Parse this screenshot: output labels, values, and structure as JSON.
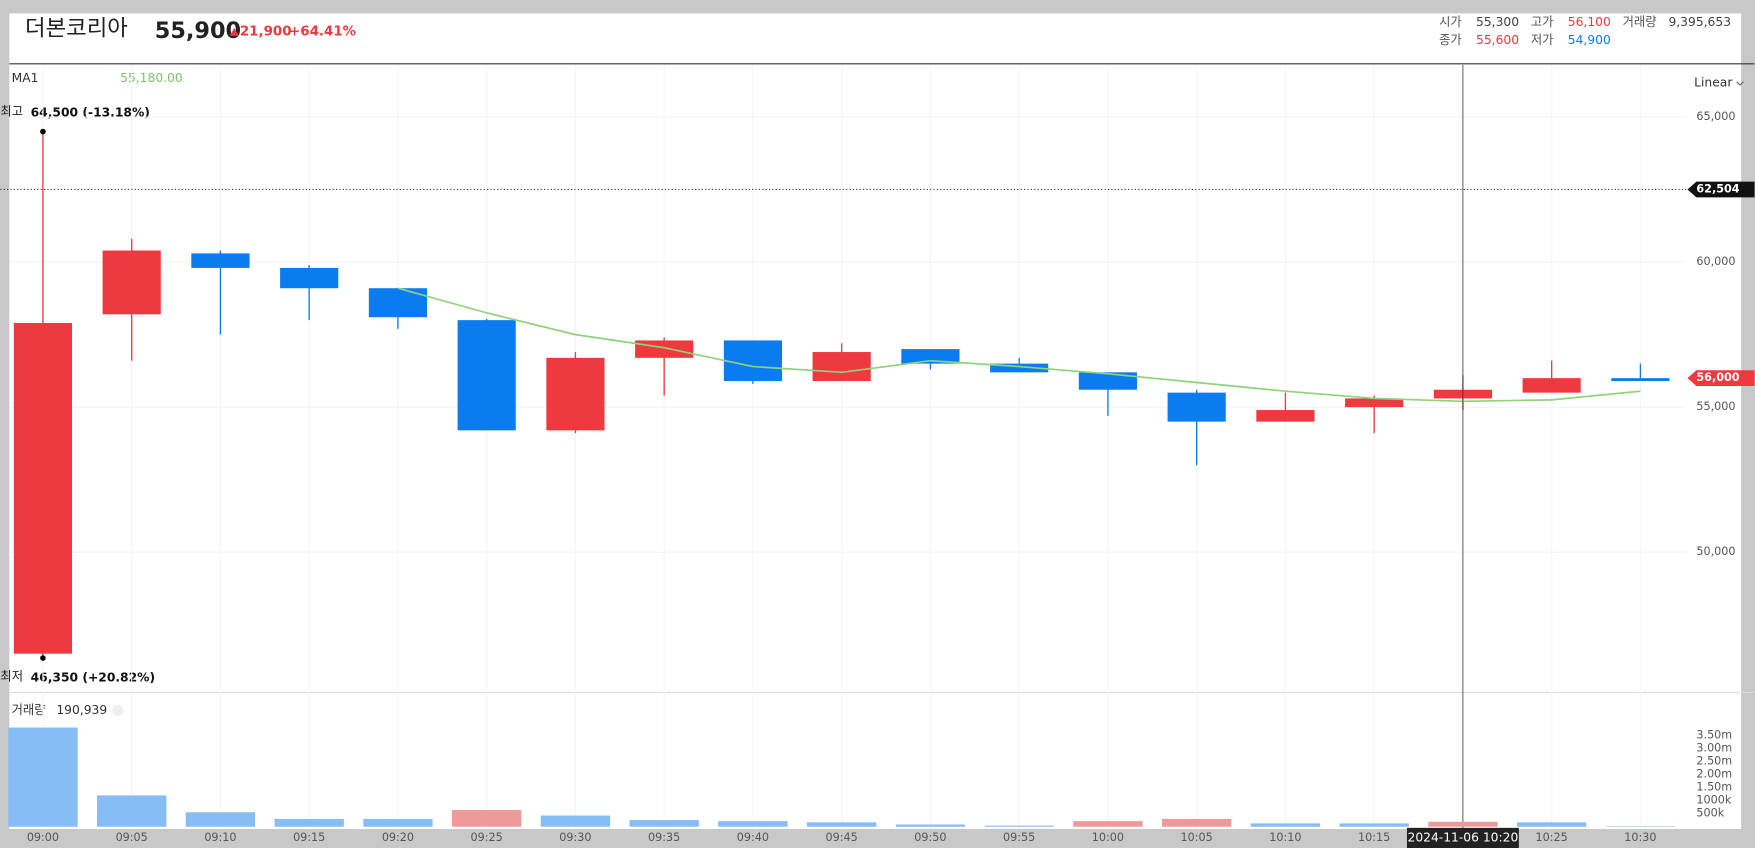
{
  "header": {
    "name": "더본코리아",
    "price": "55,900",
    "change": "21,900",
    "change_pct": "+64.41%",
    "stats": [
      {
        "label": "시가",
        "value": "55,300"
      },
      {
        "label": "고가",
        "value": "56,100"
      },
      {
        "label": "거래량",
        "value": "9,395,653"
      },
      {
        "label": "종가",
        "value": "55,600"
      },
      {
        "label": "저가",
        "value": "54,900"
      }
    ]
  },
  "chart_data": [
    {
      "type": "candlestick",
      "categories": [
        "09:00",
        "09:05",
        "09:10",
        "09:15",
        "09:20",
        "09:25",
        "09:30",
        "09:35",
        "09:40",
        "09:45",
        "09:50",
        "09:55",
        "10:00",
        "10:05",
        "10:10",
        "10:15",
        "10:20",
        "10:25",
        "10:30"
      ],
      "open": [
        46500,
        58200,
        60300,
        59800,
        59100,
        58000,
        54200,
        56700,
        57300,
        55900,
        57000,
        56500,
        56200,
        55500,
        54500,
        55000,
        55300,
        55500,
        56000
      ],
      "high": [
        64500,
        60800,
        60400,
        59900,
        59100,
        58050,
        56900,
        57400,
        57300,
        57200,
        57000,
        56700,
        56200,
        55600,
        55500,
        55400,
        56100,
        56600,
        56500
      ],
      "low": [
        46350,
        56600,
        57500,
        58000,
        57700,
        54200,
        54100,
        55400,
        55800,
        55900,
        56300,
        56200,
        54700,
        53000,
        54500,
        54100,
        54900,
        55500,
        55900
      ],
      "close": [
        57900,
        60400,
        59800,
        59100,
        58100,
        54200,
        56700,
        57300,
        55900,
        56900,
        56500,
        56200,
        55600,
        54500,
        54900,
        55300,
        55600,
        56000,
        55900
      ],
      "up_color": "#ee3a3f",
      "down_color": "#0b7cf0",
      "ma": {
        "name": "MA1",
        "value_label": "55,180.00",
        "color": "#8fd27a",
        "values": [
          null,
          null,
          null,
          null,
          59100,
          58250,
          57500,
          57050,
          56400,
          56200,
          56600,
          56400,
          56150,
          55850,
          55550,
          55300,
          55200,
          55250,
          55550
        ]
      },
      "ylim": [
        45200,
        66800
      ],
      "yticks": [
        {
          "value": 50000,
          "label": "50,000"
        },
        {
          "value": 55000,
          "label": "55,000"
        },
        {
          "value": 60000,
          "label": "60,000"
        },
        {
          "value": 65000,
          "label": "65,000"
        }
      ],
      "scale": "Linear",
      "high_note": {
        "label": "최고",
        "text": "64,500 (-13.18%)"
      },
      "low_note": {
        "label": "최저",
        "text": "46,350 (+20.82%)"
      },
      "crosshair_price": {
        "value": 62504,
        "label": "62,504"
      },
      "crosshair_time": "2024-11-06 10:20",
      "last_price": {
        "value": 56000,
        "label": "56,000"
      }
    },
    {
      "type": "bar",
      "name": "거래량",
      "value_label": "190,939",
      "values": [
        3800000,
        1200000,
        555000,
        300000,
        300000,
        640000,
        430000,
        256000,
        214000,
        170000,
        85000,
        43000,
        214000,
        300000,
        128000,
        128000,
        190939,
        170000,
        20000
      ],
      "up_color": "#f0999b",
      "down_color": "#86bdf5",
      "ylim": [
        0,
        5100000
      ],
      "yticks": [
        {
          "value": 500000,
          "label": "500k"
        },
        {
          "value": 1000000,
          "label": "1000k"
        },
        {
          "value": 1500000,
          "label": "1.50m"
        },
        {
          "value": 2000000,
          "label": "2.00m"
        },
        {
          "value": 2500000,
          "label": "2.50m"
        },
        {
          "value": 3000000,
          "label": "3.00m"
        },
        {
          "value": 3500000,
          "label": "3.50m"
        }
      ]
    }
  ]
}
